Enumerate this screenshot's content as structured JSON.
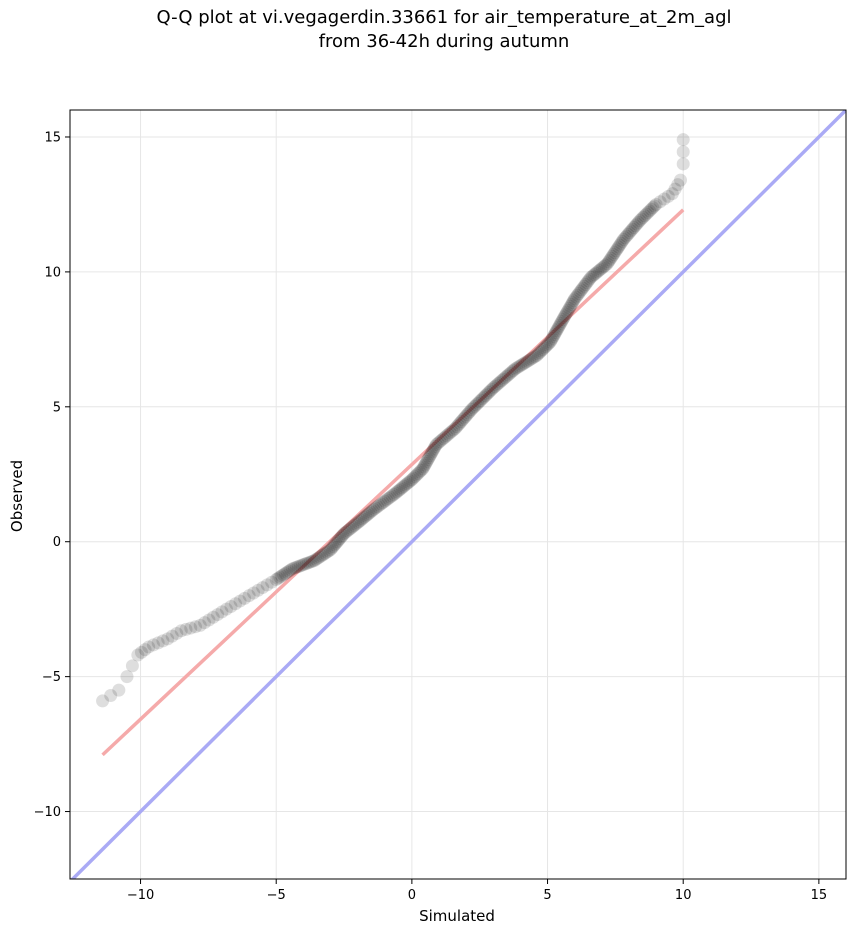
{
  "title_line1": "Q-Q plot at vi.vegagerdin.33661 for air_temperature_at_2m_agl",
  "title_line2": "from 36-42h during autumn",
  "chart_data": {
    "type": "scatter",
    "title": "Q-Q plot at vi.vegagerdin.33661 for air_temperature_at_2m_agl\nfrom 36-42h during autumn",
    "xlabel": "Simulated",
    "ylabel": "Observed",
    "xlim": [
      -12.6,
      16.0
    ],
    "ylim": [
      -12.5,
      16.0
    ],
    "xticks": [
      -10,
      -5,
      0,
      5,
      10,
      15
    ],
    "yticks": [
      -10,
      -5,
      0,
      5,
      10,
      15
    ],
    "xtick_labels": [
      "−10",
      "−5",
      "0",
      "5",
      "10",
      "15"
    ],
    "ytick_labels": [
      "−10",
      "−5",
      "0",
      "5",
      "10",
      "15"
    ],
    "grid": true,
    "marker_color": "#000000",
    "identity_line_color": "#aaaaf5",
    "fit_line_color": "#f5aaaa",
    "fit_line": {
      "x": [
        -11.4,
        10.0
      ],
      "y": [
        -7.9,
        12.3
      ]
    },
    "identity_line": {
      "x": [
        -12.6,
        16.0
      ],
      "y": [
        -12.6,
        16.0
      ]
    },
    "quantile_curve": [
      [
        -11.4,
        -5.9
      ],
      [
        -10.8,
        -5.5
      ],
      [
        -10.5,
        -5.0
      ],
      [
        -10.1,
        -4.2
      ],
      [
        -9.7,
        -3.9
      ],
      [
        -9.0,
        -3.6
      ],
      [
        -8.5,
        -3.3
      ],
      [
        -7.8,
        -3.1
      ],
      [
        -7.0,
        -2.6
      ],
      [
        -6.0,
        -2.0
      ],
      [
        -5.0,
        -1.4
      ],
      [
        -4.4,
        -1.0
      ],
      [
        -3.6,
        -0.7
      ],
      [
        -3.0,
        -0.3
      ],
      [
        -2.5,
        0.3
      ],
      [
        -2.0,
        0.7
      ],
      [
        -1.4,
        1.2
      ],
      [
        -0.6,
        1.8
      ],
      [
        0.0,
        2.3
      ],
      [
        0.4,
        2.7
      ],
      [
        0.9,
        3.6
      ],
      [
        1.6,
        4.2
      ],
      [
        2.2,
        4.9
      ],
      [
        3.0,
        5.7
      ],
      [
        3.8,
        6.4
      ],
      [
        4.6,
        6.9
      ],
      [
        5.1,
        7.4
      ],
      [
        5.6,
        8.3
      ],
      [
        6.0,
        9.0
      ],
      [
        6.6,
        9.8
      ],
      [
        7.2,
        10.3
      ],
      [
        7.8,
        11.2
      ],
      [
        8.4,
        11.9
      ],
      [
        9.0,
        12.5
      ],
      [
        9.6,
        12.9
      ],
      [
        9.9,
        13.4
      ],
      [
        10.0,
        14.0
      ],
      [
        10.0,
        14.9
      ]
    ],
    "points_note": ""
  }
}
